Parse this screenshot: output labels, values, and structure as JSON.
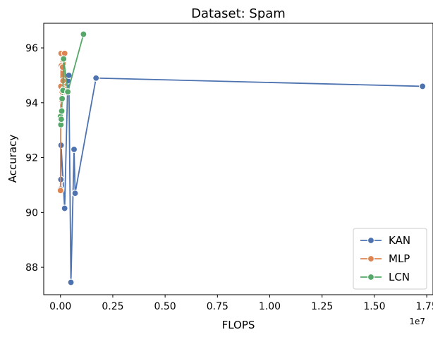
{
  "chart_data": {
    "type": "line",
    "title": "Dataset: Spam",
    "xlabel": "FLOPS",
    "ylabel": "Accuracy",
    "x_offset_label": "1e7",
    "xlim": [
      -0.08,
      1.78
    ],
    "ylim": [
      87.0,
      96.9
    ],
    "x_ticks": [
      0.0,
      0.25,
      0.5,
      0.75,
      1.0,
      1.25,
      1.5,
      1.75
    ],
    "x_tick_labels": [
      "0.00",
      "0.25",
      "0.50",
      "0.75",
      "1.00",
      "1.25",
      "1.50",
      "1.75"
    ],
    "y_ticks": [
      88,
      90,
      92,
      94,
      96
    ],
    "y_tick_labels": [
      "88",
      "90",
      "92",
      "94",
      "96"
    ],
    "grid": false,
    "legend_position": "bottom-right",
    "series": [
      {
        "name": "KAN",
        "color": "#4c72b0",
        "points": [
          [
            0.001,
            90.85
          ],
          [
            0.002,
            91.2
          ],
          [
            0.003,
            92.45
          ],
          [
            0.02,
            90.15
          ],
          [
            0.035,
            94.8
          ],
          [
            0.04,
            95.0
          ],
          [
            0.05,
            87.45
          ],
          [
            0.065,
            92.3
          ],
          [
            0.07,
            90.7
          ],
          [
            0.17,
            94.9
          ],
          [
            1.73,
            94.6
          ]
        ]
      },
      {
        "name": "MLP",
        "color": "#dd8452",
        "points": [
          [
            0.0,
            90.8
          ],
          [
            0.002,
            94.6
          ],
          [
            0.003,
            95.8
          ],
          [
            0.004,
            95.35
          ],
          [
            0.006,
            94.1
          ],
          [
            0.008,
            94.4
          ],
          [
            0.01,
            95.3
          ],
          [
            0.012,
            94.8
          ],
          [
            0.015,
            95.6
          ],
          [
            0.017,
            94.5
          ],
          [
            0.02,
            95.8
          ],
          [
            0.025,
            94.4
          ]
        ]
      },
      {
        "name": "LCN",
        "color": "#55a868",
        "points": [
          [
            0.0,
            93.5
          ],
          [
            0.002,
            93.2
          ],
          [
            0.004,
            93.4
          ],
          [
            0.006,
            93.7
          ],
          [
            0.008,
            94.15
          ],
          [
            0.012,
            94.45
          ],
          [
            0.015,
            95.6
          ],
          [
            0.035,
            94.4
          ],
          [
            0.11,
            96.5
          ]
        ]
      }
    ]
  }
}
